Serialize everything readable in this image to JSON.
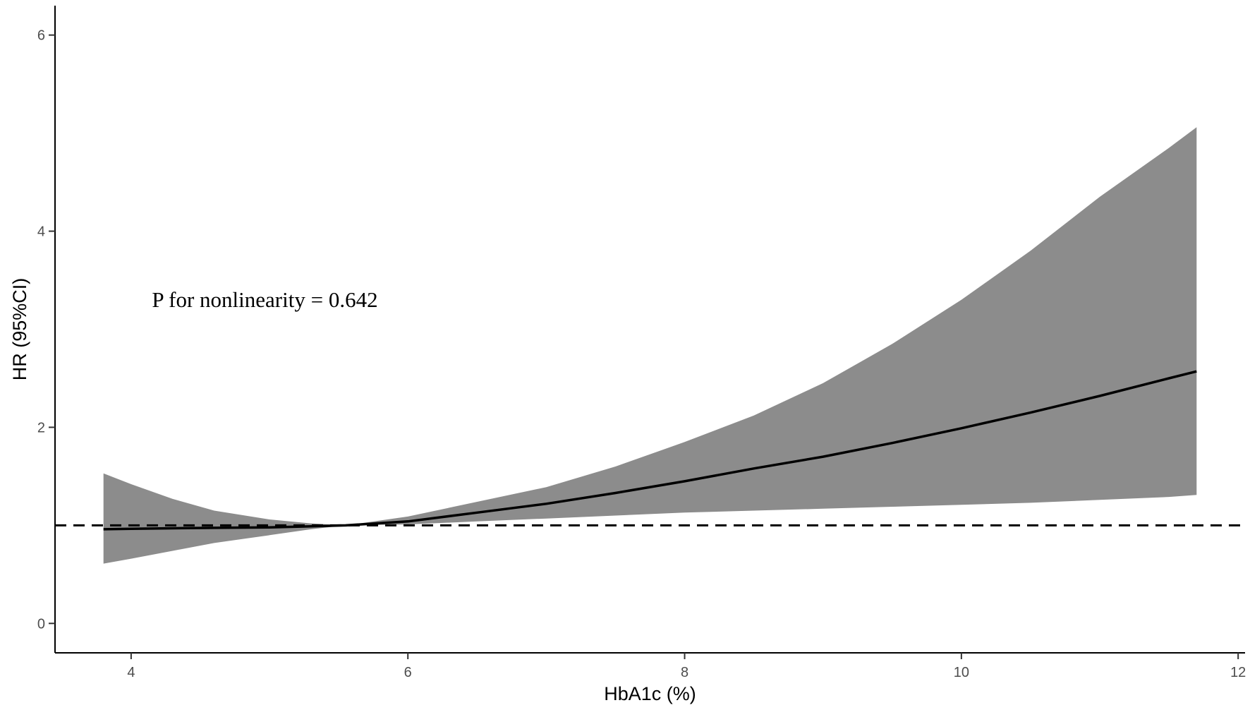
{
  "chart_data": {
    "type": "line",
    "title": "",
    "xlabel": "HbA1c (%)",
    "ylabel": "HR (95%CI)",
    "xlim": [
      3.45,
      12.05
    ],
    "ylim": [
      -0.3,
      6.3
    ],
    "x_ticks": [
      4,
      6,
      8,
      10,
      12
    ],
    "y_ticks": [
      0,
      2,
      4,
      6
    ],
    "grid": false,
    "legend": "none",
    "reference_line": {
      "y": 1,
      "style": "dashed",
      "color": "#000000"
    },
    "annotation": {
      "text": "P for nonlinearity = 0.642",
      "x": 4.15,
      "y": 3.3
    },
    "series": [
      {
        "x": [
          3.8,
          4.0,
          4.3,
          4.6,
          5.0,
          5.3,
          5.55,
          6.0,
          6.5,
          7.0,
          7.5,
          8.0,
          8.5,
          9.0,
          9.5,
          10.0,
          10.5,
          11.0,
          11.5,
          11.7
        ],
        "y": [
          0.96,
          0.965,
          0.97,
          0.975,
          0.98,
          0.99,
          1.0,
          1.04,
          1.13,
          1.22,
          1.33,
          1.45,
          1.58,
          1.7,
          1.84,
          1.99,
          2.15,
          2.32,
          2.5,
          2.57
        ],
        "lower": [
          0.61,
          0.66,
          0.74,
          0.82,
          0.9,
          0.96,
          1.0,
          1.01,
          1.04,
          1.07,
          1.1,
          1.13,
          1.15,
          1.17,
          1.19,
          1.21,
          1.23,
          1.26,
          1.29,
          1.31
        ],
        "upper": [
          1.53,
          1.42,
          1.27,
          1.15,
          1.06,
          1.02,
          1.0,
          1.09,
          1.24,
          1.39,
          1.6,
          1.85,
          2.12,
          2.45,
          2.85,
          3.3,
          3.8,
          4.35,
          4.85,
          5.06
        ],
        "color": "#000000",
        "band_color": "#8c8c8c"
      }
    ]
  }
}
